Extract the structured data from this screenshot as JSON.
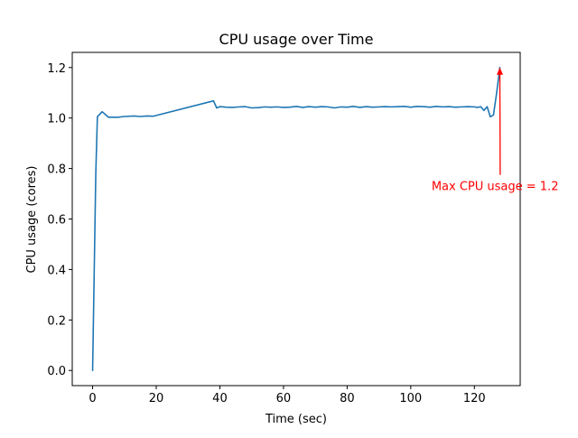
{
  "colors": {
    "series": "#1f77b4",
    "annotation": "#ff0000",
    "axes": "#000000",
    "background": "#ffffff"
  },
  "chart_data": {
    "type": "line",
    "title": "CPU usage over Time",
    "xlabel": "Time (sec)",
    "ylabel": "CPU usage (cores)",
    "xlim": [
      -6.4,
      134.4
    ],
    "ylim": [
      -0.06,
      1.26
    ],
    "xticks": [
      0,
      20,
      40,
      60,
      80,
      100,
      120
    ],
    "yticks": [
      0.0,
      0.2,
      0.4,
      0.6,
      0.8,
      1.0,
      1.2
    ],
    "grid": false,
    "series": [
      {
        "x": [
          0,
          1,
          1.5,
          3,
          5,
          8,
          10,
          13,
          15,
          17,
          19,
          38,
          39,
          40,
          42,
          44,
          46,
          48,
          50,
          52,
          54,
          56,
          58,
          60,
          62,
          64,
          66,
          68,
          70,
          72,
          74,
          76,
          78,
          80,
          82,
          84,
          86,
          88,
          90,
          92,
          94,
          96,
          98,
          100,
          102,
          104,
          106,
          108,
          110,
          112,
          114,
          116,
          118,
          120,
          121,
          122,
          123,
          124,
          125,
          126,
          127,
          128
        ],
        "values": [
          0.0,
          0.78,
          1.005,
          1.025,
          1.003,
          1.003,
          1.006,
          1.008,
          1.006,
          1.008,
          1.007,
          1.068,
          1.04,
          1.045,
          1.043,
          1.042,
          1.044,
          1.045,
          1.04,
          1.041,
          1.044,
          1.043,
          1.044,
          1.042,
          1.043,
          1.046,
          1.042,
          1.045,
          1.043,
          1.045,
          1.044,
          1.04,
          1.044,
          1.043,
          1.046,
          1.042,
          1.045,
          1.043,
          1.044,
          1.045,
          1.044,
          1.045,
          1.046,
          1.043,
          1.046,
          1.045,
          1.043,
          1.046,
          1.044,
          1.045,
          1.043,
          1.044,
          1.045,
          1.044,
          1.042,
          1.045,
          1.03,
          1.045,
          1.005,
          1.012,
          1.1,
          1.2
        ]
      }
    ],
    "annotation": {
      "text": "Max CPU usage = 1.2",
      "point": [
        128,
        1.2
      ],
      "text_anchor_point": [
        123,
        0.75
      ]
    }
  }
}
